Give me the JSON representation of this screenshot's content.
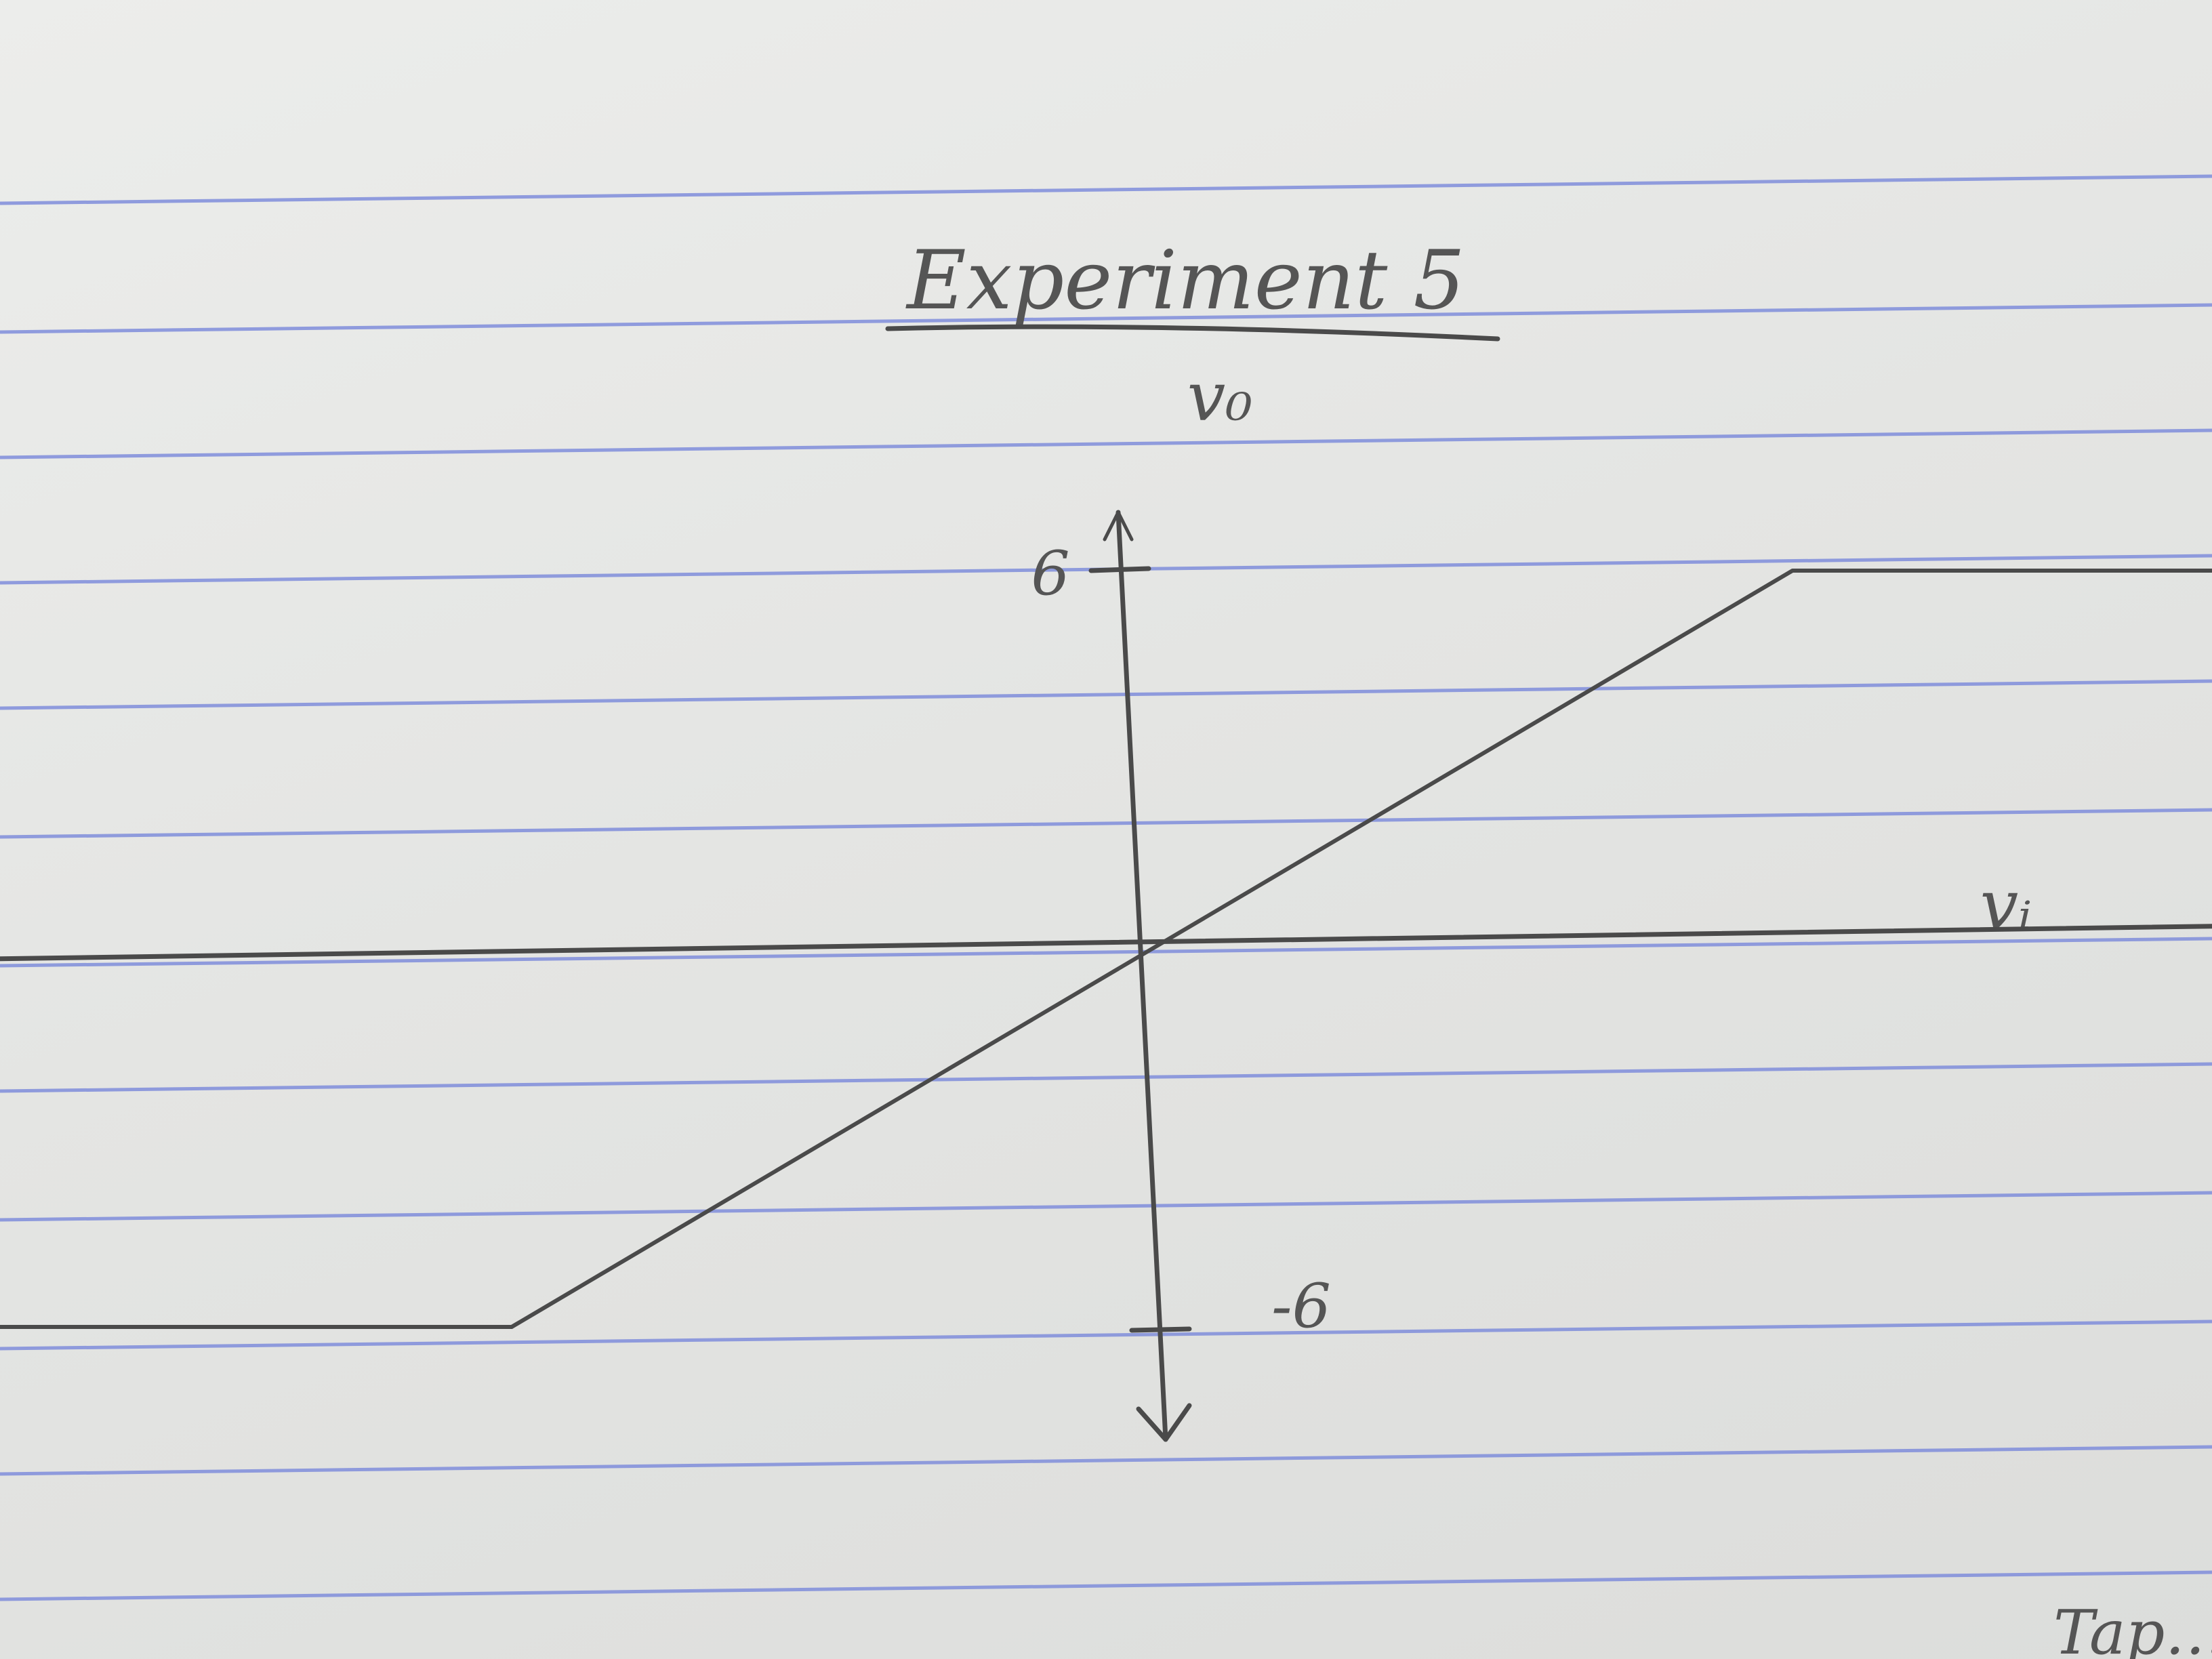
{
  "chart_data": {
    "type": "line",
    "title": "Experiment 5",
    "xlabel": "vᵢ",
    "ylabel": "v₀",
    "y_tick_labels": [
      "6",
      "-6"
    ],
    "xlim": [
      -10,
      10
    ],
    "ylim": [
      -8,
      8
    ],
    "series": [
      {
        "x": [
          -9.5,
          -4.5,
          4.5,
          9.5
        ],
        "y": [
          -6,
          -6,
          6,
          6
        ]
      }
    ]
  },
  "corner_text": "Tap…",
  "colors": {
    "paper": "#e6e6e4",
    "rule_lines": "#7f8ddb",
    "pencil": "#4a4a4a"
  }
}
